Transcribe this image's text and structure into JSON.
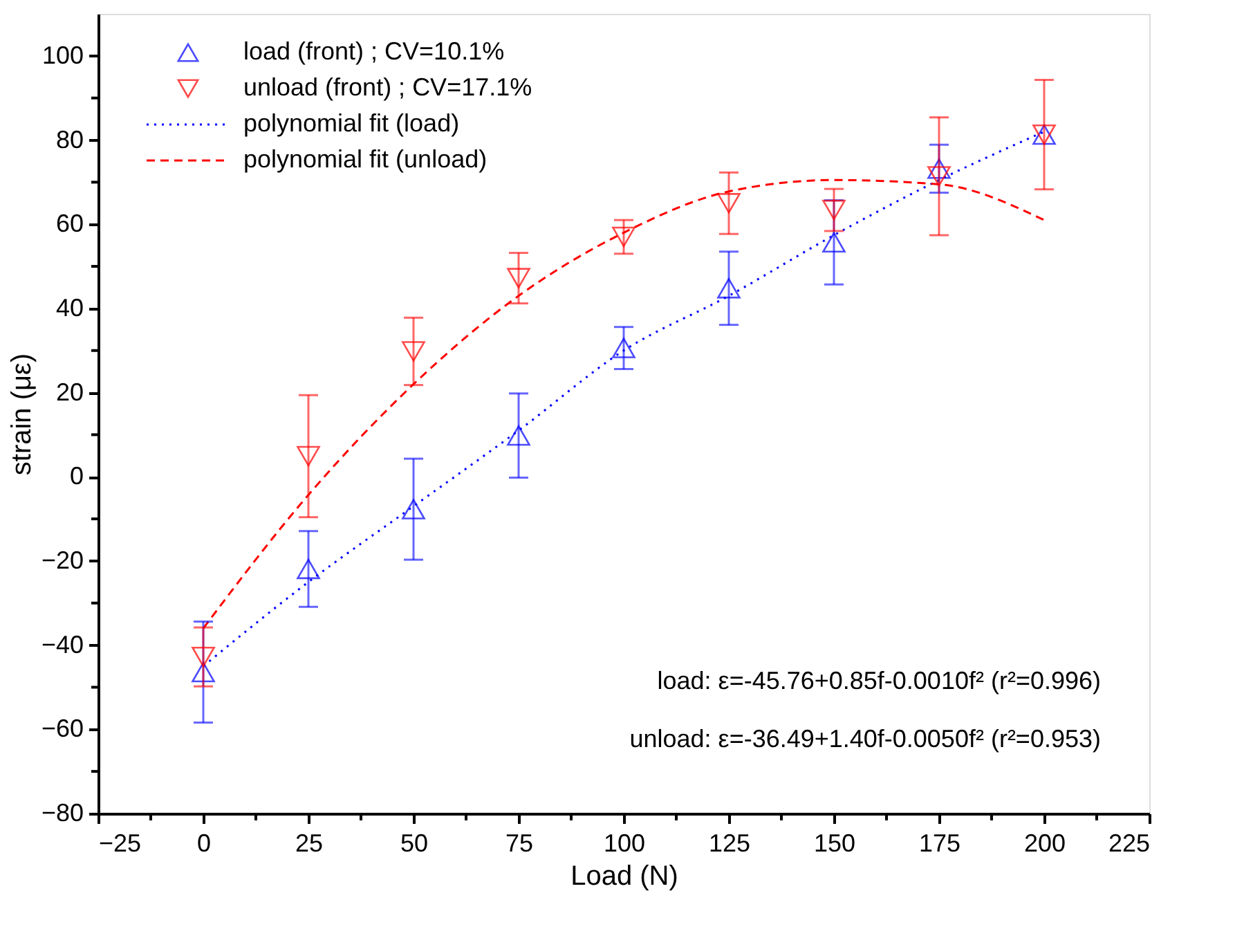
{
  "chart_data": {
    "type": "scatter",
    "xlabel": "Load (N)",
    "ylabel": "strain (με)",
    "x": [
      0,
      25,
      50,
      75,
      100,
      125,
      150,
      175,
      200
    ],
    "xlim": [
      -25,
      225
    ],
    "xticks": [
      -25,
      {
        "value": -12.5,
        "label": null
      },
      0,
      {
        "value": 12.5,
        "label": null
      },
      25,
      {
        "value": 37.5,
        "label": null
      },
      50,
      {
        "value": 62.5,
        "label": null
      },
      75,
      {
        "value": 87.5,
        "label": null
      },
      100,
      {
        "value": 112.5,
        "label": null
      },
      125,
      {
        "value": 137.5,
        "label": null
      },
      150,
      {
        "value": 162.5,
        "label": null
      },
      175,
      {
        "value": 187.5,
        "label": null
      },
      200,
      {
        "value": 212.5,
        "label": null
      },
      225
    ],
    "ylim": [
      -80,
      110
    ],
    "yticks": [
      -80,
      {
        "value": -70,
        "label": null
      },
      -60,
      {
        "value": -50,
        "label": null
      },
      -40,
      {
        "value": -30,
        "label": null
      },
      -20,
      {
        "value": -10,
        "label": null
      },
      0,
      {
        "value": 10,
        "label": null
      },
      20,
      {
        "value": 30,
        "label": null
      },
      40,
      {
        "value": 50,
        "label": null
      },
      60,
      {
        "value": 70,
        "label": null
      },
      80,
      {
        "value": 90,
        "label": null
      },
      100
    ],
    "grid": false,
    "legend": "top left",
    "series": [
      {
        "name": "load (front) ; CV=10.1%",
        "type": "scatter",
        "marker": "triangle",
        "color": "#0000ff",
        "values": [
          -46.4,
          -21.9,
          -7.7,
          9.8,
          30.6,
          44.8,
          55.7,
          73.2,
          81.3
        ],
        "errors": [
          12,
          9,
          12,
          10,
          5,
          8.7,
          10,
          5.7,
          null
        ]
      },
      {
        "name": "unload (front) ; CV=17.1%",
        "type": "scatter",
        "marker": "triangle-down",
        "color": "#ff0000",
        "values": [
          -42.8,
          4.9,
          29.8,
          47.2,
          57,
          65,
          63.4,
          71.4,
          81.3
        ],
        "errors": [
          7,
          14.5,
          8,
          6,
          4,
          7.3,
          5,
          14,
          13
        ]
      },
      {
        "name": "polynomial fit (load)",
        "type": "line",
        "marker": "none",
        "line_style": "dotted",
        "color": "#0000ff",
        "x": [
          0,
          25,
          50,
          75,
          100,
          125,
          150,
          175,
          200
        ],
        "values": [
          -45,
          -25,
          -7,
          11,
          30,
          43,
          57.4,
          70.5,
          82
        ]
      },
      {
        "name": "polynomial fit (unload)",
        "type": "line",
        "marker": "none",
        "line_style": "dashed",
        "color": "#ff0000",
        "x": [
          0,
          25,
          50,
          75,
          100,
          125,
          150,
          175,
          200
        ],
        "values": [
          -36,
          -4.3,
          22,
          43,
          58,
          67.8,
          70.5,
          69.5,
          61
        ]
      }
    ],
    "annotations": [
      "load: ε=-45.76+0.85f-0.0010f²   (r²=0.996)",
      "unload: ε=-36.49+1.40f-0.0050f²   (r²=0.953)"
    ]
  }
}
